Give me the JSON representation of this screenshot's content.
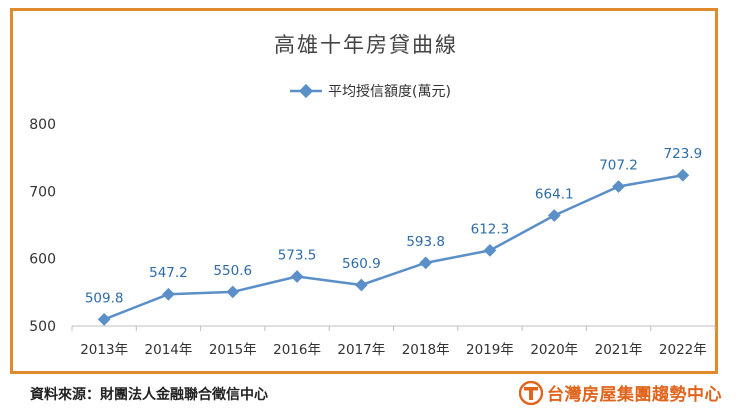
{
  "chart_data": {
    "type": "line",
    "title": "高雄十年房貸曲線",
    "x": [
      "2013年",
      "2014年",
      "2015年",
      "2016年",
      "2017年",
      "2018年",
      "2019年",
      "2020年",
      "2021年",
      "2022年"
    ],
    "series": [
      {
        "name": "平均授信額度(萬元)",
        "values": [
          509.8,
          547.2,
          550.6,
          573.5,
          560.9,
          593.8,
          612.3,
          664.1,
          707.2,
          723.9
        ],
        "labels": [
          "509.8",
          "547.2",
          "550.6",
          "573.5",
          "560.9",
          "593.8",
          "612.3",
          "664.1",
          "707.2",
          "723.9"
        ]
      }
    ],
    "ylim": [
      500,
      800
    ],
    "yticks": [
      {
        "value": 500,
        "label": "500"
      },
      {
        "value": 600,
        "label": "600"
      },
      {
        "value": 700,
        "label": "700"
      },
      {
        "value": 800,
        "label": "800"
      }
    ],
    "legend": "top-center",
    "grid": false,
    "series_color": "#5b8fc7"
  },
  "footer": {
    "source": "資料來源：財團法人金融聯合徵信中心",
    "brand": "台灣房屋集團趨勢中心",
    "brand_color": "#e0641c"
  }
}
